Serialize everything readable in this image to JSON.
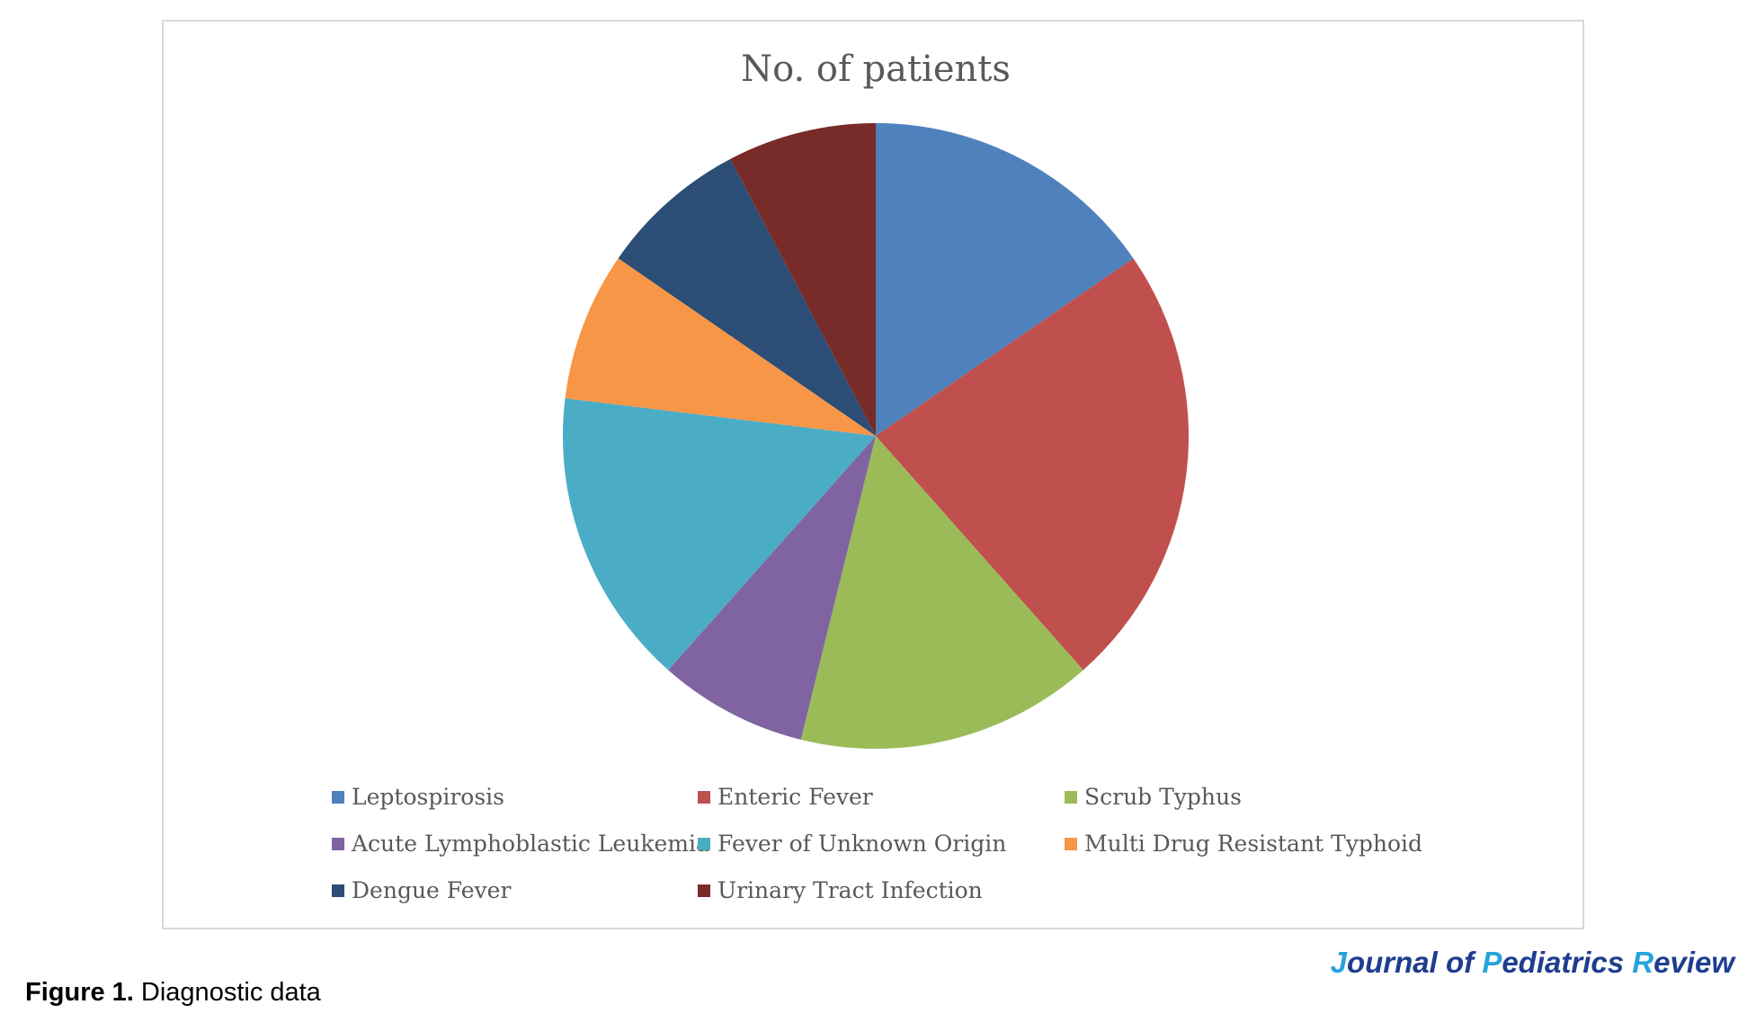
{
  "chart_data": {
    "type": "pie",
    "title": "No. of patients",
    "categories": [
      "Leptospirosis",
      "Enteric Fever",
      "Scrub Typhus",
      "Acute Lymphoblastic Leukemia",
      "Fever of Unknown Origin",
      "Multi Drug Resistant Typhoid",
      "Dengue Fever",
      "Urinary Tract Infection"
    ],
    "values": [
      2,
      3,
      2,
      1,
      2,
      1,
      1,
      1
    ],
    "colors": [
      "#4f81bd",
      "#c0504d",
      "#9bbb59",
      "#8064a2",
      "#4bacc6",
      "#f79646",
      "#2c4d75",
      "#772c2a"
    ],
    "legend_position": "bottom",
    "start_angle": "12 o'clock",
    "direction": "clockwise"
  },
  "caption": {
    "label": "Figure 1.",
    "text": " Diagnostic data"
  },
  "logo": {
    "text": "Journal of Pediatrics Review"
  }
}
